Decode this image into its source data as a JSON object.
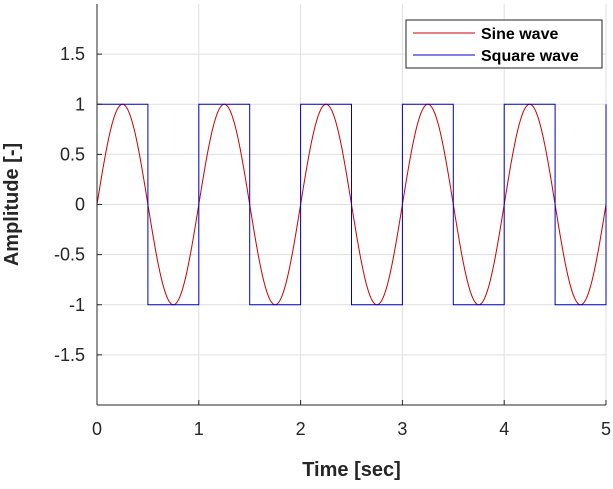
{
  "chart_data": {
    "type": "line",
    "xlabel": "Time [sec]",
    "ylabel": "Amplitude [-]",
    "xlim": [
      0,
      5
    ],
    "ylim": [
      -2,
      2
    ],
    "x_ticks": [
      0,
      1,
      2,
      3,
      4,
      5
    ],
    "x_tick_labels": [
      "0",
      "1",
      "2",
      "3",
      "4",
      "5"
    ],
    "y_ticks": [
      -1.5,
      -1,
      -0.5,
      0,
      0.5,
      1,
      1.5
    ],
    "y_tick_labels": [
      "-1.5",
      "-1",
      "-0.5",
      "0",
      "0.5",
      "1",
      "1.5"
    ],
    "grid": true,
    "legend_position": "top-right",
    "series": [
      {
        "name": "Sine wave",
        "color": "#cc0000",
        "kind": "sine",
        "frequency_hz": 1,
        "amplitude": 1,
        "x_start": 0,
        "x_end": 5
      },
      {
        "name": "Square wave",
        "color": "#0000cc",
        "kind": "square",
        "x": [
          0,
          0.5,
          0.5,
          1,
          1,
          1.5,
          1.5,
          2,
          2,
          2.5,
          2.5,
          3,
          3,
          3.5,
          3.5,
          4,
          4,
          4.5,
          4.5,
          5,
          5
        ],
        "y": [
          1,
          1,
          -1,
          -1,
          1,
          1,
          -1,
          -1,
          1,
          1,
          -1,
          -1,
          1,
          1,
          -1,
          -1,
          1,
          1,
          -1,
          -1,
          1
        ]
      }
    ]
  }
}
